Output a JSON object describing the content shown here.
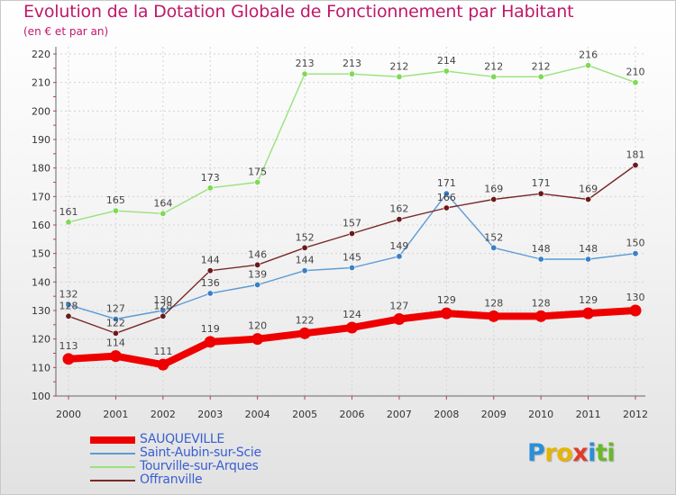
{
  "header": {
    "title": "Evolution de la Dotation Globale de Fonctionnement par Habitant",
    "subtitle": "(en € et par an)"
  },
  "chart_data": {
    "type": "line",
    "title": "Evolution de la Dotation Globale de Fonctionnement par Habitant",
    "ylabel": "(en € et par an)",
    "xlabel": "",
    "ylim": [
      100,
      220
    ],
    "yticks": [
      100,
      110,
      120,
      130,
      140,
      150,
      160,
      170,
      180,
      190,
      200,
      210,
      220
    ],
    "grid": true,
    "legend_position": "bottom-left",
    "categories": [
      "2000",
      "2001",
      "2002",
      "2003",
      "2004",
      "2005",
      "2006",
      "2007",
      "2008",
      "2009",
      "2010",
      "2011",
      "2012"
    ],
    "series": [
      {
        "name": "SAUQUEVILLE",
        "color": "#ee0000",
        "emphasis": true,
        "values": [
          113,
          114,
          111,
          119,
          120,
          122,
          124,
          127,
          129,
          128,
          128,
          129,
          130
        ]
      },
      {
        "name": "Saint-Aubin-sur-Scie",
        "color": "#5b9bd5",
        "marker": "#3b7fc4",
        "values": [
          132,
          127,
          130,
          136,
          139,
          144,
          145,
          149,
          171,
          152,
          148,
          148,
          150
        ]
      },
      {
        "name": "Tourville-sur-Arques",
        "color": "#99e27a",
        "marker": "#7ed957",
        "values": [
          161,
          165,
          164,
          173,
          175,
          213,
          213,
          212,
          214,
          212,
          212,
          216,
          210
        ]
      },
      {
        "name": "Offranville",
        "color": "#7a2a2a",
        "marker": "#6a1a1a",
        "values": [
          128,
          122,
          128,
          144,
          146,
          152,
          157,
          162,
          166,
          169,
          171,
          169,
          181
        ]
      }
    ]
  },
  "logo": {
    "letters": [
      {
        "ch": "P",
        "color": "#2a8fd8"
      },
      {
        "ch": "r",
        "color": "#e8b400"
      },
      {
        "ch": "o",
        "color": "#e8b400"
      },
      {
        "ch": "x",
        "color": "#e23a2a"
      },
      {
        "ch": "i",
        "color": "#2a8fd8"
      },
      {
        "ch": "t",
        "color": "#6ab82a"
      },
      {
        "ch": "i",
        "color": "#6ab82a"
      }
    ]
  }
}
